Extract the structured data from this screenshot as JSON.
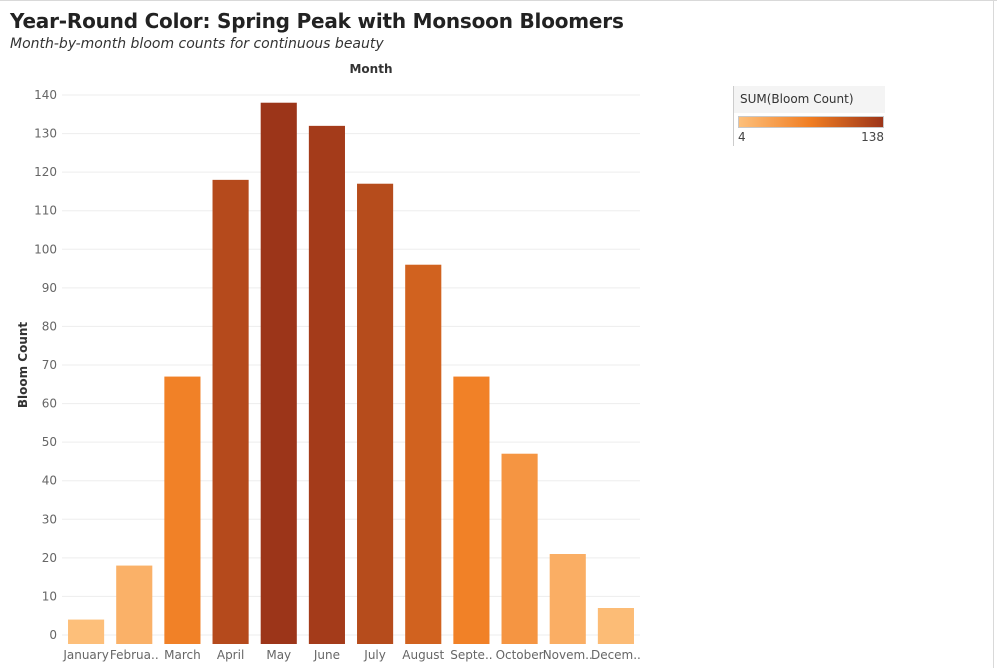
{
  "header": {
    "title": "Year-Round Color: Spring Peak with Monsoon Bloomers",
    "subtitle": "Month-by-month bloom counts for continuous beauty"
  },
  "legend": {
    "title": "SUM(Bloom Count)",
    "min_label": "4",
    "max_label": "138",
    "color_low": "#fdbf7a",
    "color_mid": "#f07d22",
    "color_high": "#9c3519"
  },
  "colors": {
    "grid": "#ededed",
    "tick_text": "#666666",
    "label_text": "#333333"
  },
  "chart_data": {
    "type": "bar",
    "title": "",
    "top_axis_label": "Month",
    "xlabel": "",
    "ylabel": "Bloom Count",
    "categories": [
      "January",
      "February",
      "March",
      "April",
      "May",
      "June",
      "July",
      "August",
      "September",
      "October",
      "November",
      "December"
    ],
    "category_tick_labels": [
      "January",
      "Februa..",
      "March",
      "April",
      "May",
      "June",
      "July",
      "August",
      "Septe..",
      "October",
      "Novem..",
      "Decem.."
    ],
    "values": [
      4,
      18,
      67,
      118,
      138,
      132,
      117,
      96,
      67,
      47,
      21,
      7
    ],
    "ylim": [
      0,
      140
    ],
    "y_ticks": [
      0,
      10,
      20,
      30,
      40,
      50,
      60,
      70,
      80,
      90,
      100,
      110,
      120,
      130,
      140
    ],
    "grid": true,
    "legend_position": "top-right",
    "color_scale": {
      "min": 4,
      "max": 138
    }
  }
}
